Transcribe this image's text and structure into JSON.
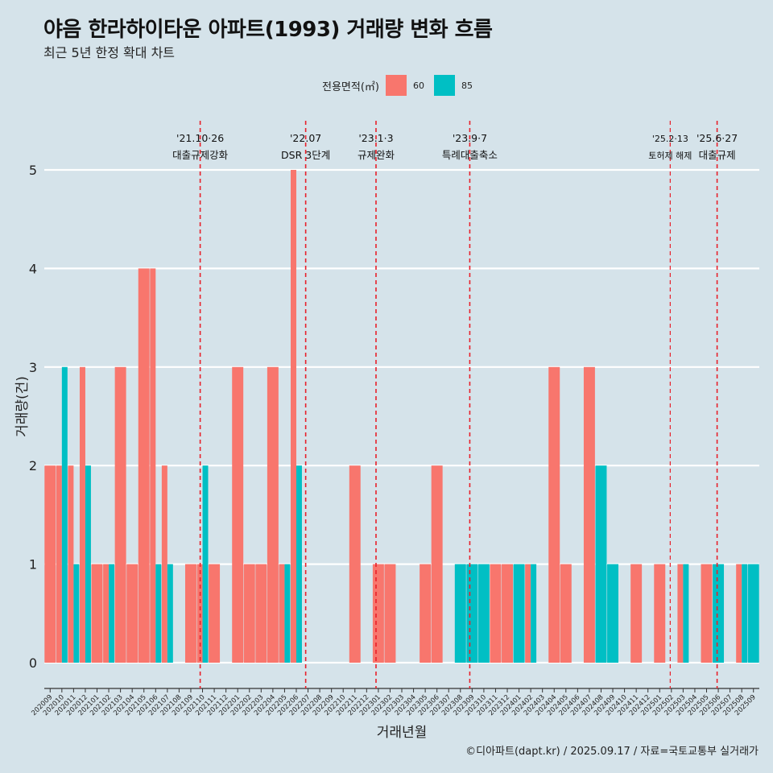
{
  "title": "야음 한라하이타운 아파트(1993) 거래량 변화 흐름",
  "subtitle": "최근 5년 한정 확대 차트",
  "legend": {
    "title": "전용면적(㎡)",
    "items": [
      {
        "label": "60",
        "color": "#f8766d"
      },
      {
        "label": "85",
        "color": "#00bfc4"
      }
    ]
  },
  "caption": "©디아파트(dapt.kr) / 2025.09.17 / 자료=국토교통부 실거래가",
  "chart_data": {
    "type": "bar",
    "xlabel": "거래년월",
    "ylabel": "거래량(건)",
    "ylim": [
      0,
      5
    ],
    "yticks": [
      0,
      1,
      2,
      3,
      4,
      5
    ],
    "categories": [
      "202009",
      "202010",
      "202011",
      "202012",
      "202101",
      "202102",
      "202103",
      "202104",
      "202105",
      "202106",
      "202107",
      "202108",
      "202109",
      "202110",
      "202111",
      "202112",
      "202201",
      "202202",
      "202203",
      "202204",
      "202205",
      "202206",
      "202207",
      "202208",
      "202209",
      "202210",
      "202211",
      "202212",
      "202301",
      "202302",
      "202303",
      "202304",
      "202305",
      "202306",
      "202307",
      "202308",
      "202309",
      "202310",
      "202311",
      "202312",
      "202401",
      "202402",
      "202403",
      "202404",
      "202405",
      "202406",
      "202407",
      "202408",
      "202409",
      "202410",
      "202411",
      "202412",
      "202501",
      "202502",
      "202503",
      "202504",
      "202505",
      "202506",
      "202507",
      "202508",
      "202509"
    ],
    "series": [
      {
        "name": "60",
        "color": "#f8766d",
        "values": [
          2,
          2,
          2,
          3,
          1,
          1,
          3,
          1,
          4,
          4,
          2,
          0,
          1,
          1,
          1,
          0,
          3,
          1,
          1,
          3,
          1,
          5,
          0,
          0,
          0,
          0,
          2,
          0,
          1,
          1,
          0,
          0,
          1,
          2,
          0,
          0,
          0,
          0,
          1,
          1,
          0,
          1,
          0,
          3,
          1,
          0,
          3,
          0,
          0,
          0,
          1,
          0,
          1,
          0,
          1,
          0,
          1,
          0,
          0,
          1,
          0
        ]
      },
      {
        "name": "85",
        "color": "#00bfc4",
        "values": [
          0,
          3,
          1,
          2,
          0,
          1,
          0,
          0,
          0,
          1,
          1,
          0,
          0,
          2,
          0,
          0,
          0,
          0,
          0,
          0,
          1,
          2,
          0,
          0,
          0,
          0,
          0,
          0,
          0,
          0,
          0,
          0,
          0,
          0,
          0,
          1,
          1,
          1,
          0,
          0,
          1,
          1,
          0,
          0,
          0,
          0,
          0,
          2,
          1,
          0,
          0,
          0,
          0,
          0,
          1,
          0,
          0,
          1,
          0,
          1,
          1
        ]
      }
    ],
    "annotations": [
      {
        "date": "'21.10·26",
        "text": "대출규제강화",
        "pos": 13.3,
        "size": "large"
      },
      {
        "date": "'22.07",
        "text": "DSR 3단계",
        "pos": 22.3,
        "size": "large"
      },
      {
        "date": "'23.1·3",
        "text": "규제완화",
        "pos": 28.3,
        "size": "large"
      },
      {
        "date": "'23.9·7",
        "text": "특례대출축소",
        "pos": 36.3,
        "size": "large"
      },
      {
        "date": "'25.2·13",
        "text": "토허제 해제",
        "pos": 53.4,
        "size": "small"
      },
      {
        "date": "'25.6·27",
        "text": "대출규제",
        "pos": 57.4,
        "size": "large"
      }
    ]
  }
}
